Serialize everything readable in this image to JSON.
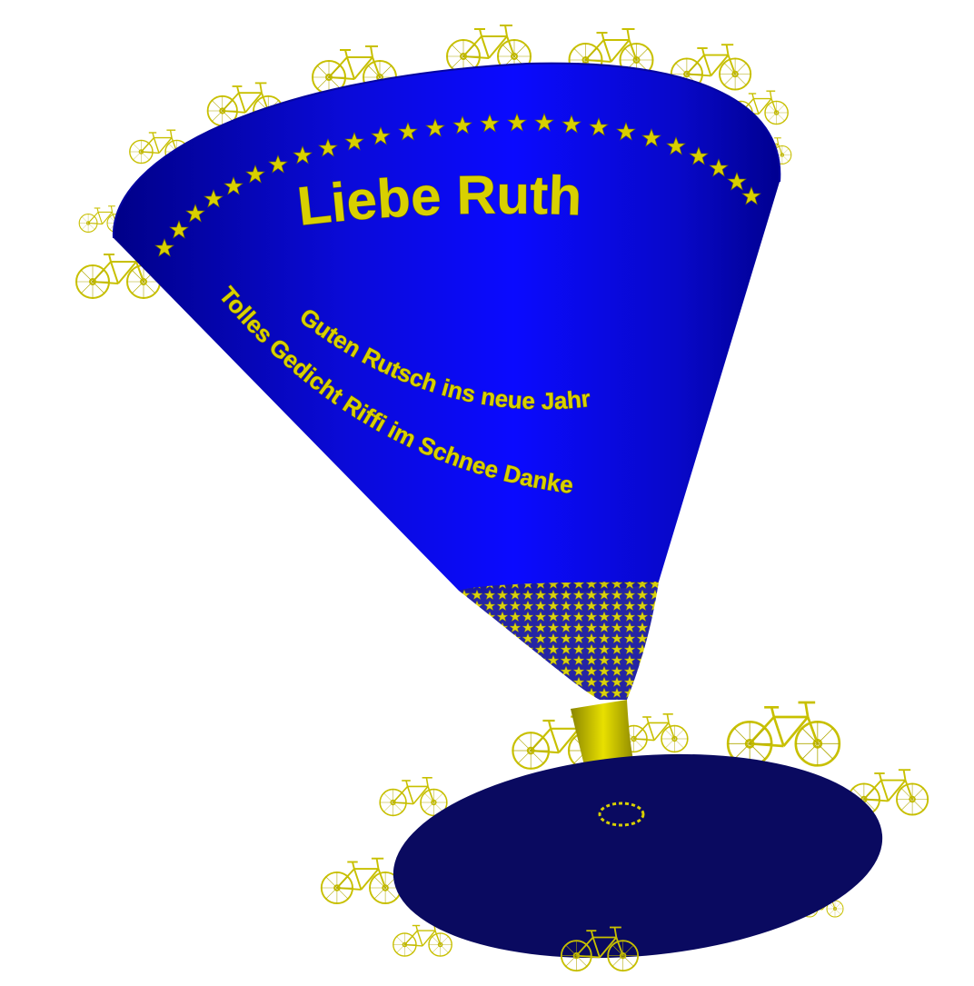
{
  "scene": {
    "colors": {
      "cup": "#0a0ae0",
      "cup_dark": "#00007a",
      "base": "#0a0a60",
      "gold": "#d8d000",
      "gold_dark": "#8a8500"
    },
    "icons": [
      "bicycle-icon",
      "star-icon"
    ]
  },
  "inscriptions": {
    "title": "Liebe Ruth",
    "line1": "Guten Rutsch ins neue Jahr",
    "line2": "Tolles Gedicht Riffi im Schnee  Danke"
  }
}
